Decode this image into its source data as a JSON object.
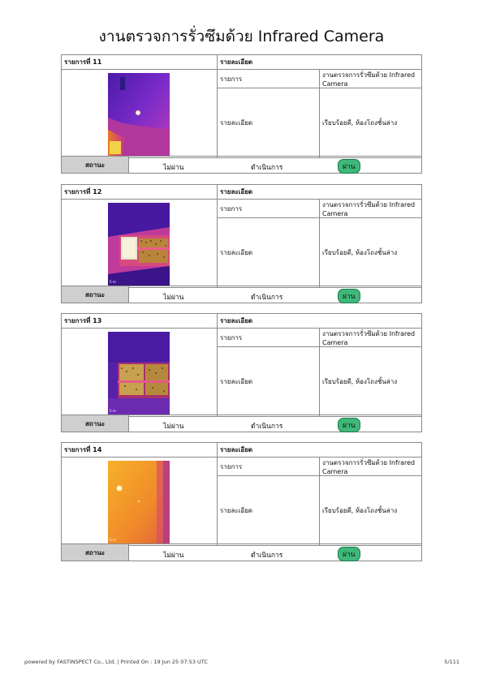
{
  "title": "งานตรวจการรั่วซึมด้วย Infrared Camera",
  "labels": {
    "detail_header": "รายละเอียด",
    "item_label": "รายการ",
    "detail_label": "รายละเอียด",
    "status_label": "สถานะ",
    "fail": "ไม่ผ่าน",
    "in_progress": "ดำเนินการ",
    "pass": "ผ่าน"
  },
  "items": [
    {
      "header": "รายการที่ 11",
      "item_value": "งานตรวจการรั่วซึมด้วย Infrared Camera",
      "detail_value": "เรียบร้อยดี, ห้องโถงชั้นล่าง",
      "status": "ผ่าน"
    },
    {
      "header": "รายการที่ 12",
      "item_value": "งานตรวจการรั่วซึมด้วย Infrared Camera",
      "detail_value": "เรียบร้อยดี, ห้องโถงชั้นล่าง",
      "status": "ผ่าน"
    },
    {
      "header": "รายการที่ 13",
      "item_value": "งานตรวจการรั่วซึมด้วย Infrared Camera",
      "detail_value": "เรียบร้อยดี, ห้องโถงชั้นล่าง",
      "status": "ผ่าน"
    },
    {
      "header": "รายการที่ 14",
      "item_value": "งานตรวจการรั่วซึมด้วย Infrared Camera",
      "detail_value": "เรียบร้อยดี, ห้องโถงชั้นล่าง",
      "status": "ผ่าน"
    }
  ],
  "footer": {
    "left": "powered by FASTINSPECT Co., Ltd. | Printed On : 19 Jun 25 07:53 UTC",
    "page": "5/111"
  },
  "colors": {
    "pass_badge": "#3fb87a",
    "status_bg": "#cfcfcf",
    "border": "#8a8a8a"
  }
}
